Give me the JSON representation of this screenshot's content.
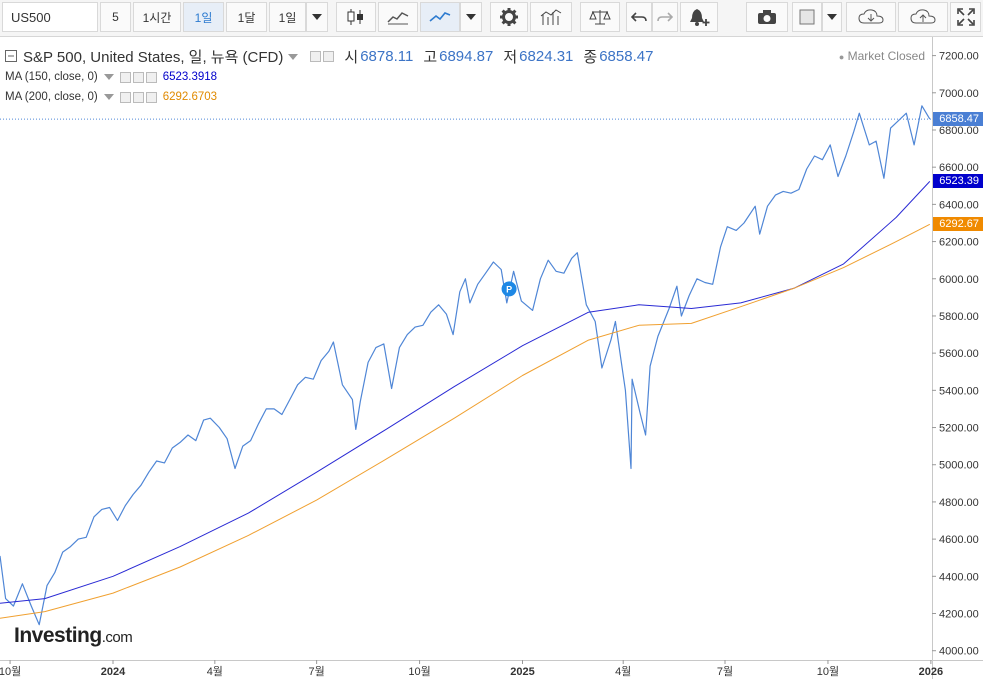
{
  "toolbar": {
    "symbol": "US500",
    "intervals": [
      "5",
      "1시간",
      "1일",
      "1달",
      "1일"
    ],
    "active_interval": "1일"
  },
  "legend": {
    "title": "S&P 500, United States, 일, 뉴욕 (CFD)",
    "open_label": "시",
    "open": "6878.11",
    "high_label": "고",
    "high": "6894.87",
    "low_label": "저",
    "low": "6824.31",
    "close_label": "종",
    "close": "6858.47",
    "market_status": "Market Closed",
    "ma150_label": "MA (150, close, 0)",
    "ma150_value": "6523.3918",
    "ma200_label": "MA (200, close, 0)",
    "ma200_value": "6292.6703"
  },
  "watermark": {
    "brand": "Investing",
    "suffix": ".com"
  },
  "price_tags": {
    "last": "6858.47",
    "ma150": "6523.39",
    "ma200": "6292.67"
  },
  "colors": {
    "price_line": "#4f86d6",
    "ma150": "#2a2ad4",
    "ma200": "#f0a030",
    "last_tag": "#4a7fd4",
    "ma150_tag": "#0000cc",
    "ma200_tag": "#f08a00",
    "marker": "#1e88e5"
  },
  "chart_data": {
    "type": "line",
    "title": "S&P 500, United States, 일, 뉴욕 (CFD)",
    "ylim": [
      3950,
      7300
    ],
    "yticks": [
      4000,
      4200,
      4400,
      4600,
      4800,
      5000,
      5200,
      5400,
      5600,
      5800,
      6000,
      6200,
      6400,
      6600,
      6800,
      7000,
      7200
    ],
    "ytick_labels": [
      "4000.00",
      "4200.00",
      "4400.00",
      "4600.00",
      "4800.00",
      "5000.00",
      "5200.00",
      "5400.00",
      "5600.00",
      "5800.00",
      "6000.00",
      "6200.00",
      "6400.00",
      "6600.00",
      "6800.00",
      "7000.00",
      "7200.00"
    ],
    "xlim": [
      "2023-09-22",
      "2026-01-02"
    ],
    "xticks": [
      {
        "date": "2023-10-01",
        "label": "10월"
      },
      {
        "date": "2024-01-01",
        "label": "2024"
      },
      {
        "date": "2024-04-01",
        "label": "4월"
      },
      {
        "date": "2024-07-01",
        "label": "7월"
      },
      {
        "date": "2024-10-01",
        "label": "10월"
      },
      {
        "date": "2025-01-01",
        "label": "2025"
      },
      {
        "date": "2025-04-01",
        "label": "4월"
      },
      {
        "date": "2025-07-01",
        "label": "7월"
      },
      {
        "date": "2025-10-01",
        "label": "10월"
      },
      {
        "date": "2026-01-01",
        "label": "2026"
      }
    ],
    "last_price": 6858.47,
    "marker": {
      "date": "2024-12-20",
      "label": "P"
    },
    "series": [
      {
        "name": "S&P 500",
        "points": [
          [
            "2023-09-22",
            4510
          ],
          [
            "2023-09-27",
            4280
          ],
          [
            "2023-10-04",
            4240
          ],
          [
            "2023-10-12",
            4360
          ],
          [
            "2023-10-20",
            4240
          ],
          [
            "2023-10-27",
            4140
          ],
          [
            "2023-11-03",
            4350
          ],
          [
            "2023-11-10",
            4420
          ],
          [
            "2023-11-17",
            4530
          ],
          [
            "2023-11-24",
            4560
          ],
          [
            "2023-12-01",
            4600
          ],
          [
            "2023-12-08",
            4610
          ],
          [
            "2023-12-15",
            4720
          ],
          [
            "2023-12-22",
            4760
          ],
          [
            "2023-12-29",
            4770
          ],
          [
            "2024-01-05",
            4700
          ],
          [
            "2024-01-12",
            4780
          ],
          [
            "2024-01-19",
            4840
          ],
          [
            "2024-01-26",
            4890
          ],
          [
            "2024-02-02",
            4960
          ],
          [
            "2024-02-09",
            5020
          ],
          [
            "2024-02-16",
            5010
          ],
          [
            "2024-02-23",
            5090
          ],
          [
            "2024-03-01",
            5120
          ],
          [
            "2024-03-08",
            5160
          ],
          [
            "2024-03-15",
            5130
          ],
          [
            "2024-03-22",
            5240
          ],
          [
            "2024-03-28",
            5250
          ],
          [
            "2024-04-05",
            5200
          ],
          [
            "2024-04-12",
            5140
          ],
          [
            "2024-04-19",
            4980
          ],
          [
            "2024-04-26",
            5100
          ],
          [
            "2024-05-03",
            5130
          ],
          [
            "2024-05-10",
            5220
          ],
          [
            "2024-05-17",
            5300
          ],
          [
            "2024-05-24",
            5300
          ],
          [
            "2024-05-31",
            5270
          ],
          [
            "2024-06-07",
            5350
          ],
          [
            "2024-06-14",
            5430
          ],
          [
            "2024-06-21",
            5470
          ],
          [
            "2024-06-28",
            5460
          ],
          [
            "2024-07-05",
            5560
          ],
          [
            "2024-07-12",
            5610
          ],
          [
            "2024-07-16",
            5660
          ],
          [
            "2024-07-24",
            5430
          ],
          [
            "2024-08-02",
            5350
          ],
          [
            "2024-08-05",
            5190
          ],
          [
            "2024-08-09",
            5340
          ],
          [
            "2024-08-16",
            5550
          ],
          [
            "2024-08-23",
            5630
          ],
          [
            "2024-08-30",
            5650
          ],
          [
            "2024-09-06",
            5410
          ],
          [
            "2024-09-13",
            5630
          ],
          [
            "2024-09-20",
            5700
          ],
          [
            "2024-09-27",
            5740
          ],
          [
            "2024-10-04",
            5750
          ],
          [
            "2024-10-11",
            5820
          ],
          [
            "2024-10-18",
            5860
          ],
          [
            "2024-10-25",
            5810
          ],
          [
            "2024-10-31",
            5700
          ],
          [
            "2024-11-06",
            5930
          ],
          [
            "2024-11-11",
            6000
          ],
          [
            "2024-11-15",
            5870
          ],
          [
            "2024-11-22",
            5970
          ],
          [
            "2024-11-29",
            6030
          ],
          [
            "2024-12-06",
            6090
          ],
          [
            "2024-12-13",
            6050
          ],
          [
            "2024-12-18",
            5870
          ],
          [
            "2024-12-24",
            6040
          ],
          [
            "2024-12-31",
            5880
          ],
          [
            "2025-01-10",
            5830
          ],
          [
            "2025-01-17",
            6000
          ],
          [
            "2025-01-24",
            6100
          ],
          [
            "2025-01-31",
            6040
          ],
          [
            "2025-02-07",
            6030
          ],
          [
            "2025-02-14",
            6110
          ],
          [
            "2025-02-19",
            6140
          ],
          [
            "2025-02-27",
            5860
          ],
          [
            "2025-03-07",
            5770
          ],
          [
            "2025-03-13",
            5520
          ],
          [
            "2025-03-21",
            5670
          ],
          [
            "2025-03-25",
            5770
          ],
          [
            "2025-04-03",
            5400
          ],
          [
            "2025-04-08",
            4980
          ],
          [
            "2025-04-09",
            5460
          ],
          [
            "2025-04-16",
            5280
          ],
          [
            "2025-04-21",
            5160
          ],
          [
            "2025-04-25",
            5530
          ],
          [
            "2025-05-02",
            5690
          ],
          [
            "2025-05-12",
            5840
          ],
          [
            "2025-05-19",
            5960
          ],
          [
            "2025-05-23",
            5800
          ],
          [
            "2025-05-30",
            5910
          ],
          [
            "2025-06-06",
            6000
          ],
          [
            "2025-06-13",
            5980
          ],
          [
            "2025-06-20",
            5970
          ],
          [
            "2025-06-27",
            6170
          ],
          [
            "2025-07-03",
            6280
          ],
          [
            "2025-07-11",
            6260
          ],
          [
            "2025-07-18",
            6300
          ],
          [
            "2025-07-28",
            6390
          ],
          [
            "2025-08-01",
            6240
          ],
          [
            "2025-08-08",
            6390
          ],
          [
            "2025-08-15",
            6450
          ],
          [
            "2025-08-22",
            6470
          ],
          [
            "2025-08-29",
            6460
          ],
          [
            "2025-09-05",
            6480
          ],
          [
            "2025-09-12",
            6590
          ],
          [
            "2025-09-19",
            6660
          ],
          [
            "2025-09-26",
            6640
          ],
          [
            "2025-10-03",
            6720
          ],
          [
            "2025-10-10",
            6550
          ],
          [
            "2025-10-17",
            6660
          ],
          [
            "2025-10-24",
            6790
          ],
          [
            "2025-10-29",
            6890
          ],
          [
            "2025-11-07",
            6720
          ],
          [
            "2025-11-13",
            6740
          ],
          [
            "2025-11-20",
            6540
          ],
          [
            "2025-11-26",
            6810
          ],
          [
            "2025-12-03",
            6850
          ],
          [
            "2025-12-10",
            6890
          ],
          [
            "2025-12-17",
            6720
          ],
          [
            "2025-12-24",
            6930
          ],
          [
            "2025-12-31",
            6858.47
          ]
        ]
      },
      {
        "name": "MA (150, close, 0)",
        "points": [
          [
            "2023-09-22",
            4255
          ],
          [
            "2023-11-01",
            4280
          ],
          [
            "2024-01-01",
            4400
          ],
          [
            "2024-03-01",
            4560
          ],
          [
            "2024-05-01",
            4740
          ],
          [
            "2024-07-01",
            4960
          ],
          [
            "2024-09-01",
            5190
          ],
          [
            "2024-11-01",
            5420
          ],
          [
            "2025-01-01",
            5640
          ],
          [
            "2025-03-01",
            5820
          ],
          [
            "2025-04-15",
            5860
          ],
          [
            "2025-06-01",
            5840
          ],
          [
            "2025-07-15",
            5870
          ],
          [
            "2025-09-01",
            5950
          ],
          [
            "2025-10-15",
            6080
          ],
          [
            "2025-12-01",
            6330
          ],
          [
            "2025-12-31",
            6523.39
          ]
        ]
      },
      {
        "name": "MA (200, close, 0)",
        "points": [
          [
            "2023-09-22",
            4175
          ],
          [
            "2023-11-01",
            4210
          ],
          [
            "2024-01-01",
            4310
          ],
          [
            "2024-03-01",
            4450
          ],
          [
            "2024-05-01",
            4620
          ],
          [
            "2024-07-01",
            4810
          ],
          [
            "2024-09-01",
            5030
          ],
          [
            "2024-11-01",
            5250
          ],
          [
            "2025-01-01",
            5480
          ],
          [
            "2025-03-01",
            5670
          ],
          [
            "2025-04-15",
            5750
          ],
          [
            "2025-06-01",
            5760
          ],
          [
            "2025-07-15",
            5850
          ],
          [
            "2025-09-01",
            5950
          ],
          [
            "2025-10-15",
            6060
          ],
          [
            "2025-12-01",
            6200
          ],
          [
            "2025-12-31",
            6292.67
          ]
        ]
      }
    ]
  }
}
